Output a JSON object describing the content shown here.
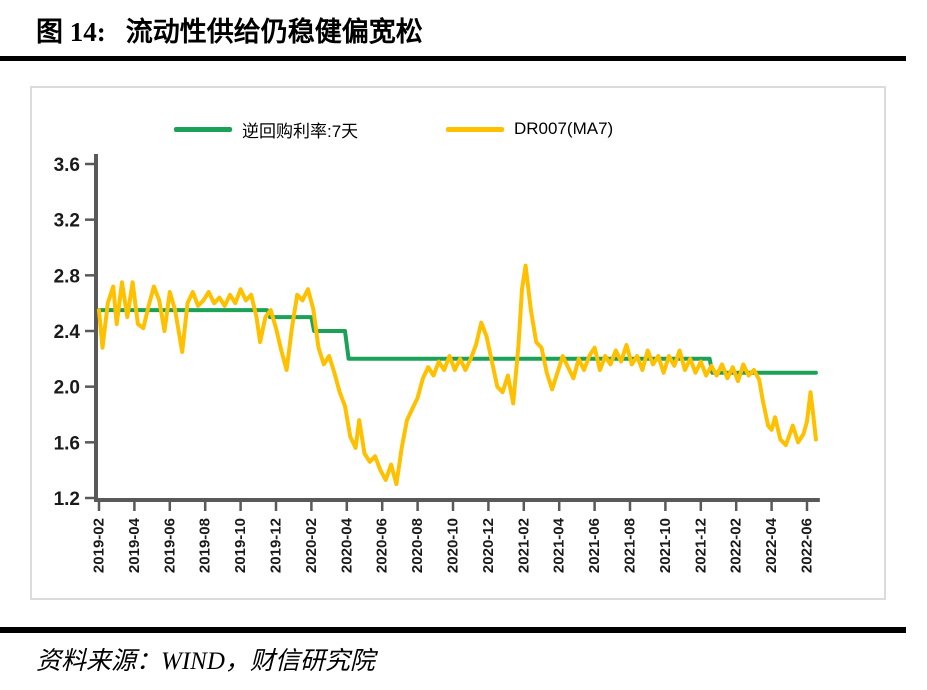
{
  "figure": {
    "number_label": "图 14:",
    "title": "流动性供给仍稳健偏宽松",
    "source_note": "资料来源：WIND，财信研究院"
  },
  "legend": {
    "items": [
      {
        "label": "逆回购利率:7天",
        "color": "#1BA158"
      },
      {
        "label": "DR007(MA7)",
        "color": "#FFC000"
      }
    ]
  },
  "chart_data": {
    "type": "line",
    "title": "流动性供给仍稳健偏宽松",
    "x_unit": "months since 2019-02",
    "x_tick_positions": [
      0,
      2,
      4,
      6,
      8,
      10,
      12,
      14,
      16,
      18,
      20,
      22,
      24,
      26,
      28,
      30,
      32,
      34,
      36,
      38,
      40
    ],
    "x_tick_labels": [
      "2019-02",
      "2019-04",
      "2019-06",
      "2019-08",
      "2019-10",
      "2019-12",
      "2020-02",
      "2020-04",
      "2020-06",
      "2020-08",
      "2020-10",
      "2020-12",
      "2021-02",
      "2021-04",
      "2021-06",
      "2021-08",
      "2021-10",
      "2021-12",
      "2022-02",
      "2022-04",
      "2022-06"
    ],
    "x_max": 40.5,
    "ylim": [
      1.2,
      3.6
    ],
    "y_ticks": [
      1.2,
      1.6,
      2.0,
      2.4,
      2.8,
      3.2,
      3.6
    ],
    "grid": false,
    "legend_position": "top",
    "axis_color": "#595959",
    "tick_label_color": "#1A1A1A",
    "series": [
      {
        "name": "逆回购利率:7天",
        "color": "#1BA158",
        "points": [
          [
            0,
            2.55
          ],
          [
            9.5,
            2.55
          ],
          [
            9.65,
            2.5
          ],
          [
            12.0,
            2.5
          ],
          [
            12.15,
            2.4
          ],
          [
            13.9,
            2.4
          ],
          [
            14.1,
            2.2
          ],
          [
            34.5,
            2.2
          ],
          [
            34.65,
            2.1
          ],
          [
            40.5,
            2.1
          ]
        ]
      },
      {
        "name": "DR007(MA7)",
        "color": "#FFC000",
        "points": [
          [
            0,
            2.55
          ],
          [
            0.2,
            2.28
          ],
          [
            0.5,
            2.6
          ],
          [
            0.8,
            2.72
          ],
          [
            1.0,
            2.45
          ],
          [
            1.3,
            2.75
          ],
          [
            1.6,
            2.5
          ],
          [
            1.9,
            2.75
          ],
          [
            2.2,
            2.45
          ],
          [
            2.5,
            2.42
          ],
          [
            2.8,
            2.58
          ],
          [
            3.1,
            2.72
          ],
          [
            3.4,
            2.62
          ],
          [
            3.7,
            2.4
          ],
          [
            4.0,
            2.68
          ],
          [
            4.3,
            2.55
          ],
          [
            4.7,
            2.25
          ],
          [
            5.0,
            2.6
          ],
          [
            5.3,
            2.68
          ],
          [
            5.6,
            2.58
          ],
          [
            5.9,
            2.62
          ],
          [
            6.2,
            2.68
          ],
          [
            6.5,
            2.6
          ],
          [
            6.8,
            2.64
          ],
          [
            7.1,
            2.58
          ],
          [
            7.4,
            2.66
          ],
          [
            7.7,
            2.6
          ],
          [
            8.0,
            2.7
          ],
          [
            8.3,
            2.62
          ],
          [
            8.6,
            2.66
          ],
          [
            8.9,
            2.5
          ],
          [
            9.1,
            2.32
          ],
          [
            9.4,
            2.5
          ],
          [
            9.7,
            2.55
          ],
          [
            10.0,
            2.42
          ],
          [
            10.3,
            2.26
          ],
          [
            10.6,
            2.12
          ],
          [
            10.9,
            2.42
          ],
          [
            11.2,
            2.66
          ],
          [
            11.5,
            2.62
          ],
          [
            11.8,
            2.7
          ],
          [
            12.1,
            2.56
          ],
          [
            12.4,
            2.28
          ],
          [
            12.7,
            2.16
          ],
          [
            13.0,
            2.22
          ],
          [
            13.3,
            2.1
          ],
          [
            13.6,
            1.96
          ],
          [
            13.9,
            1.86
          ],
          [
            14.2,
            1.64
          ],
          [
            14.5,
            1.56
          ],
          [
            14.7,
            1.76
          ],
          [
            15.0,
            1.52
          ],
          [
            15.3,
            1.46
          ],
          [
            15.6,
            1.5
          ],
          [
            15.9,
            1.4
          ],
          [
            16.2,
            1.33
          ],
          [
            16.5,
            1.44
          ],
          [
            16.8,
            1.3
          ],
          [
            17.1,
            1.56
          ],
          [
            17.4,
            1.76
          ],
          [
            17.7,
            1.84
          ],
          [
            18.0,
            1.92
          ],
          [
            18.3,
            2.06
          ],
          [
            18.6,
            2.14
          ],
          [
            18.9,
            2.08
          ],
          [
            19.2,
            2.18
          ],
          [
            19.5,
            2.12
          ],
          [
            19.8,
            2.22
          ],
          [
            20.1,
            2.12
          ],
          [
            20.4,
            2.2
          ],
          [
            20.7,
            2.12
          ],
          [
            21.0,
            2.2
          ],
          [
            21.3,
            2.3
          ],
          [
            21.6,
            2.46
          ],
          [
            21.9,
            2.36
          ],
          [
            22.2,
            2.18
          ],
          [
            22.5,
            2.0
          ],
          [
            22.8,
            1.96
          ],
          [
            23.1,
            2.08
          ],
          [
            23.4,
            1.88
          ],
          [
            23.7,
            2.3
          ],
          [
            23.9,
            2.7
          ],
          [
            24.1,
            2.87
          ],
          [
            24.4,
            2.55
          ],
          [
            24.7,
            2.32
          ],
          [
            25.0,
            2.28
          ],
          [
            25.3,
            2.1
          ],
          [
            25.6,
            1.98
          ],
          [
            25.9,
            2.1
          ],
          [
            26.2,
            2.22
          ],
          [
            26.5,
            2.14
          ],
          [
            26.8,
            2.06
          ],
          [
            27.1,
            2.2
          ],
          [
            27.4,
            2.12
          ],
          [
            27.7,
            2.22
          ],
          [
            28.0,
            2.28
          ],
          [
            28.3,
            2.12
          ],
          [
            28.6,
            2.22
          ],
          [
            28.9,
            2.16
          ],
          [
            29.2,
            2.26
          ],
          [
            29.5,
            2.18
          ],
          [
            29.8,
            2.3
          ],
          [
            30.1,
            2.16
          ],
          [
            30.4,
            2.22
          ],
          [
            30.7,
            2.12
          ],
          [
            31.0,
            2.26
          ],
          [
            31.3,
            2.16
          ],
          [
            31.6,
            2.22
          ],
          [
            31.9,
            2.1
          ],
          [
            32.2,
            2.22
          ],
          [
            32.5,
            2.15
          ],
          [
            32.8,
            2.26
          ],
          [
            33.1,
            2.12
          ],
          [
            33.4,
            2.2
          ],
          [
            33.7,
            2.1
          ],
          [
            34.0,
            2.18
          ],
          [
            34.3,
            2.08
          ],
          [
            34.6,
            2.15
          ],
          [
            34.9,
            2.08
          ],
          [
            35.2,
            2.16
          ],
          [
            35.5,
            2.06
          ],
          [
            35.8,
            2.14
          ],
          [
            36.1,
            2.04
          ],
          [
            36.4,
            2.16
          ],
          [
            36.7,
            2.08
          ],
          [
            37.0,
            2.12
          ],
          [
            37.3,
            2.05
          ],
          [
            37.5,
            1.9
          ],
          [
            37.8,
            1.72
          ],
          [
            38.0,
            1.69
          ],
          [
            38.2,
            1.78
          ],
          [
            38.5,
            1.62
          ],
          [
            38.8,
            1.58
          ],
          [
            39.0,
            1.65
          ],
          [
            39.2,
            1.72
          ],
          [
            39.5,
            1.6
          ],
          [
            39.8,
            1.66
          ],
          [
            40.0,
            1.75
          ],
          [
            40.2,
            1.96
          ],
          [
            40.35,
            1.8
          ],
          [
            40.5,
            1.62
          ]
        ]
      }
    ]
  }
}
